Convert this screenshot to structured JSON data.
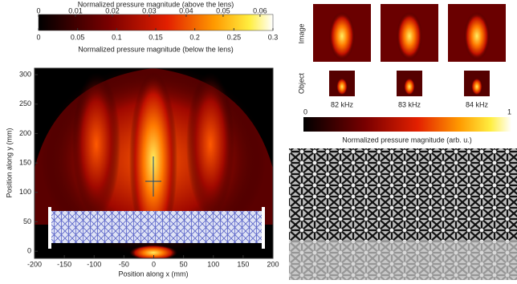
{
  "colorbar_top": {
    "label_above": "Normalized pressure magnitude (above the lens)",
    "ticks_above": [
      0,
      0.01,
      0.02,
      0.03,
      0.04,
      0.05,
      0.06
    ],
    "lim_above": [
      0,
      0.0635
    ],
    "label_below": "Normalized pressure magnitude (below the lens)",
    "ticks_below": [
      0,
      0.05,
      0.1,
      0.15,
      0.2,
      0.25,
      0.3
    ],
    "lim_below": [
      0,
      0.3
    ]
  },
  "chart_data": {
    "type": "heatmap",
    "xlabel": "Position along x (mm)",
    "ylabel": "Position along y (mm)",
    "xlim": [
      -200,
      200
    ],
    "ylim": [
      -12,
      311
    ],
    "xticks": [
      -200,
      -150,
      -100,
      -50,
      0,
      50,
      100,
      150,
      200
    ],
    "yticks": [
      0,
      50,
      100,
      150,
      200,
      250,
      300
    ]
  },
  "panel_right": {
    "row_labels": [
      "Image",
      "Object"
    ],
    "frequencies": [
      "82 kHz",
      "83 kHz",
      "84 kHz"
    ],
    "colorbar": {
      "ticks": [
        0,
        1
      ],
      "lim": [
        0,
        1
      ],
      "label": "Normalized pressure magnitude (arb. u.)"
    }
  }
}
